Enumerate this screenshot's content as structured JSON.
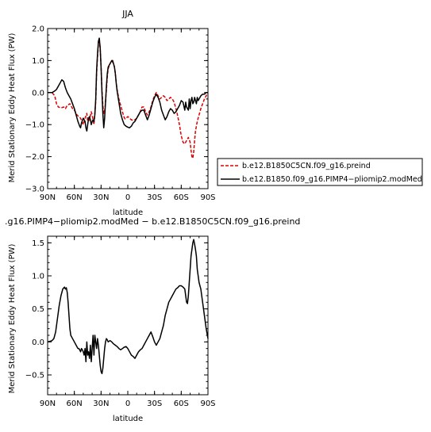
{
  "chart_data": [
    {
      "type": "line",
      "title": "JJA",
      "xlabel": "latitude",
      "ylabel": "Merid Stationary Eddy Heat Flux (PW)",
      "xlim": [
        90,
        -90
      ],
      "ylim": [
        -3.0,
        2.0
      ],
      "x_ticks": [
        90,
        60,
        30,
        0,
        -30,
        -60,
        -90
      ],
      "x_tick_labels": [
        "90N",
        "60N",
        "30N",
        "0",
        "30S",
        "60S",
        "90S"
      ],
      "y_ticks": [
        -3.0,
        -2.0,
        -1.0,
        0.0,
        1.0,
        2.0
      ],
      "y_tick_labels": [
        "−3.0",
        "−2.0",
        "−1.0",
        "0.0",
        "1.0",
        "2.0"
      ],
      "legend": "right",
      "series": [
        {
          "name": "b.e12.B1850C5CN.f09_g16.preind",
          "color": "#dd0000",
          "dash": "dashed",
          "x": [
            90,
            85,
            82,
            80,
            78,
            75,
            72,
            70,
            68,
            65,
            62,
            60,
            57,
            55,
            53,
            50,
            48,
            46,
            45,
            43,
            41,
            40,
            38,
            36,
            35,
            34,
            33,
            32,
            31,
            30,
            29,
            28,
            27,
            26,
            25,
            24,
            23,
            22,
            20,
            18,
            17,
            16,
            15,
            14,
            13,
            12,
            10,
            8,
            6,
            5,
            4,
            3,
            2,
            0,
            -2,
            -4,
            -6,
            -8,
            -10,
            -12,
            -14,
            -15,
            -16,
            -18,
            -20,
            -22,
            -24,
            -26,
            -28,
            -30,
            -32,
            -34,
            -36,
            -38,
            -40,
            -42,
            -44,
            -46,
            -48,
            -50,
            -52,
            -55,
            -58,
            -60,
            -62,
            -64,
            -66,
            -68,
            -70,
            -71,
            -72,
            -73,
            -74,
            -75,
            -76,
            -77,
            -78,
            -80,
            -82,
            -84,
            -86,
            -88,
            -90
          ],
          "values": [
            0.0,
            0.0,
            -0.1,
            -0.35,
            -0.45,
            -0.48,
            -0.45,
            -0.5,
            -0.4,
            -0.35,
            -0.5,
            -0.55,
            -0.7,
            -0.75,
            -0.8,
            -1.0,
            -0.8,
            -0.65,
            -0.9,
            -0.85,
            -0.6,
            -0.7,
            -1.0,
            -0.3,
            0.6,
            1.1,
            1.5,
            1.6,
            1.4,
            0.8,
            0.1,
            -0.4,
            -0.65,
            -0.6,
            -0.3,
            0.1,
            0.5,
            0.75,
            0.9,
            1.0,
            0.95,
            0.9,
            0.8,
            0.6,
            0.3,
            0.1,
            -0.2,
            -0.4,
            -0.6,
            -0.7,
            -0.78,
            -0.82,
            -0.8,
            -0.75,
            -0.8,
            -0.85,
            -0.87,
            -0.85,
            -0.8,
            -0.7,
            -0.6,
            -0.5,
            -0.45,
            -0.45,
            -0.6,
            -0.7,
            -0.6,
            -0.45,
            -0.25,
            -0.1,
            0.0,
            -0.1,
            -0.2,
            -0.15,
            -0.1,
            -0.15,
            -0.25,
            -0.2,
            -0.15,
            -0.2,
            -0.3,
            -0.6,
            -1.0,
            -1.35,
            -1.55,
            -1.6,
            -1.5,
            -1.4,
            -1.55,
            -1.8,
            -2.0,
            -2.05,
            -1.85,
            -1.5,
            -1.2,
            -1.05,
            -0.9,
            -0.7,
            -0.5,
            -0.35,
            -0.2,
            -0.1,
            0.0
          ]
        },
        {
          "name": "b.e12.B1850.f09_g16.PIMP4−pliomip2.modMed",
          "color": "#000000",
          "dash": "solid",
          "x": [
            90,
            85,
            82,
            80,
            78,
            76,
            74,
            72,
            70,
            68,
            66,
            64,
            62,
            60,
            58,
            56,
            54,
            53,
            52,
            50,
            48,
            47,
            46,
            45,
            44,
            43,
            42,
            41,
            40,
            39,
            38,
            37,
            36,
            35,
            34,
            33,
            32,
            31,
            30,
            29,
            28,
            27,
            26,
            25,
            24,
            23,
            22,
            20,
            18,
            17,
            16,
            15,
            14,
            13,
            12,
            10,
            8,
            6,
            4,
            2,
            0,
            -2,
            -4,
            -6,
            -8,
            -10,
            -12,
            -14,
            -16,
            -18,
            -20,
            -22,
            -24,
            -26,
            -28,
            -30,
            -32,
            -34,
            -36,
            -38,
            -40,
            -42,
            -44,
            -46,
            -48,
            -50,
            -52,
            -54,
            -56,
            -58,
            -60,
            -62,
            -64,
            -65,
            -66,
            -68,
            -69,
            -70,
            -71,
            -72,
            -73,
            -74,
            -75,
            -76,
            -77,
            -78,
            -79,
            -80,
            -82,
            -84,
            -86,
            -88,
            -90
          ],
          "values": [
            0.0,
            0.0,
            0.05,
            0.1,
            0.2,
            0.3,
            0.4,
            0.35,
            0.15,
            0.0,
            -0.1,
            -0.2,
            -0.35,
            -0.5,
            -0.7,
            -0.9,
            -1.05,
            -1.1,
            -0.95,
            -0.8,
            -0.9,
            -1.1,
            -1.2,
            -1.0,
            -0.8,
            -0.75,
            -0.85,
            -1.0,
            -0.9,
            -0.85,
            -0.9,
            -0.7,
            -0.2,
            0.7,
            1.2,
            1.6,
            1.7,
            1.4,
            0.8,
            0.0,
            -0.65,
            -1.1,
            -0.8,
            -0.3,
            0.2,
            0.6,
            0.8,
            0.9,
            1.0,
            1.0,
            0.9,
            0.8,
            0.6,
            0.3,
            0.05,
            -0.3,
            -0.65,
            -0.85,
            -1.0,
            -1.05,
            -1.08,
            -1.1,
            -1.05,
            -0.95,
            -0.9,
            -0.8,
            -0.7,
            -0.6,
            -0.55,
            -0.55,
            -0.7,
            -0.85,
            -0.7,
            -0.5,
            -0.3,
            -0.15,
            -0.05,
            -0.15,
            -0.3,
            -0.55,
            -0.7,
            -0.85,
            -0.75,
            -0.6,
            -0.5,
            -0.55,
            -0.65,
            -0.6,
            -0.5,
            -0.4,
            -0.25,
            -0.3,
            -0.55,
            -0.3,
            -0.45,
            -0.55,
            -0.2,
            -0.5,
            -0.25,
            -0.15,
            -0.35,
            -0.3,
            -0.15,
            -0.25,
            -0.35,
            -0.15,
            -0.25,
            -0.2,
            -0.1,
            -0.05,
            -0.05,
            0.0,
            0.0
          ]
        }
      ]
    },
    {
      "type": "line",
      "title": ".g16.PIMP4−pliomip2.modMed  −  b.e12.B1850C5CN.f09_g16.preind",
      "xlabel": "latitude",
      "ylabel": "Merid Stationary Eddy Heat Flux (PW)",
      "xlim": [
        90,
        -90
      ],
      "ylim": [
        -0.8,
        1.6
      ],
      "x_ticks": [
        90,
        60,
        30,
        0,
        -30,
        -60,
        -90
      ],
      "x_tick_labels": [
        "90N",
        "60N",
        "30N",
        "0",
        "30S",
        "60S",
        "90S"
      ],
      "y_ticks": [
        -0.5,
        0.0,
        0.5,
        1.0,
        1.5
      ],
      "y_tick_labels": [
        "−0.5",
        "0.0",
        "0.5",
        "1.0",
        "1.5"
      ],
      "legend": "none",
      "series": [
        {
          "color": "#000000",
          "dash": "solid",
          "x": [
            90,
            87,
            85,
            83,
            81,
            79,
            77,
            75,
            73,
            71,
            70,
            69,
            68,
            67,
            66,
            65,
            64,
            62,
            60,
            58,
            56,
            55,
            54,
            53,
            52,
            51,
            50,
            49,
            48,
            47,
            46,
            45,
            44,
            43,
            42,
            41,
            40,
            39,
            38,
            37,
            36,
            35,
            34,
            33,
            32,
            31,
            30,
            29,
            28,
            27,
            26,
            25,
            24,
            23,
            22,
            20,
            18,
            16,
            14,
            12,
            10,
            8,
            6,
            4,
            2,
            0,
            -2,
            -4,
            -6,
            -8,
            -10,
            -12,
            -14,
            -16,
            -18,
            -20,
            -22,
            -24,
            -26,
            -28,
            -30,
            -32,
            -34,
            -36,
            -38,
            -40,
            -42,
            -44,
            -46,
            -48,
            -50,
            -52,
            -54,
            -56,
            -58,
            -60,
            -62,
            -64,
            -65,
            -66,
            -67,
            -68,
            -69,
            -70,
            -71,
            -72,
            -73,
            -74,
            -75,
            -76,
            -77,
            -78,
            -79,
            -80,
            -81,
            -82,
            -84,
            -86,
            -88,
            -90
          ],
          "values": [
            0.0,
            0.01,
            0.02,
            0.05,
            0.15,
            0.35,
            0.55,
            0.7,
            0.8,
            0.83,
            0.8,
            0.82,
            0.75,
            0.6,
            0.4,
            0.2,
            0.1,
            0.05,
            0.0,
            -0.05,
            -0.1,
            -0.1,
            -0.12,
            -0.15,
            -0.1,
            -0.12,
            -0.15,
            -0.2,
            -0.1,
            -0.3,
            0.0,
            -0.2,
            -0.15,
            -0.25,
            -0.05,
            -0.3,
            -0.1,
            0.1,
            -0.2,
            0.1,
            0.0,
            -0.1,
            0.05,
            -0.05,
            -0.2,
            -0.35,
            -0.45,
            -0.48,
            -0.4,
            -0.25,
            -0.1,
            0.0,
            0.05,
            0.03,
            0.0,
            0.02,
            0.0,
            -0.03,
            -0.05,
            -0.07,
            -0.1,
            -0.12,
            -0.1,
            -0.08,
            -0.07,
            -0.1,
            -0.15,
            -0.2,
            -0.22,
            -0.25,
            -0.2,
            -0.15,
            -0.12,
            -0.1,
            -0.05,
            0.0,
            0.05,
            0.1,
            0.15,
            0.08,
            0.0,
            -0.05,
            0.0,
            0.05,
            0.15,
            0.25,
            0.4,
            0.5,
            0.6,
            0.65,
            0.7,
            0.75,
            0.8,
            0.82,
            0.85,
            0.85,
            0.83,
            0.8,
            0.7,
            0.6,
            0.58,
            0.7,
            0.9,
            1.1,
            1.3,
            1.4,
            1.5,
            1.55,
            1.48,
            1.4,
            1.3,
            1.1,
            1.0,
            0.9,
            0.85,
            0.8,
            0.6,
            0.4,
            0.2,
            0.05
          ]
        }
      ]
    }
  ]
}
